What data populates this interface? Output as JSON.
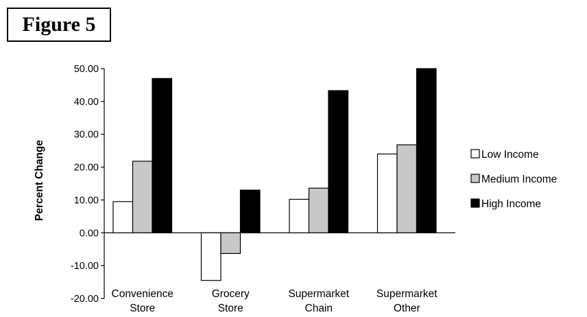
{
  "figure_label": "Figure 5",
  "chart_data": {
    "type": "bar",
    "title": "",
    "xlabel": "",
    "ylabel": "Percent Change",
    "ylim": [
      -20,
      50
    ],
    "yticks": [
      "50.00",
      "40.00",
      "30.00",
      "20.00",
      "10.00",
      "0.00",
      "-10.00",
      "-20.00"
    ],
    "ytick_values": [
      50,
      40,
      30,
      20,
      10,
      0,
      -10,
      -20
    ],
    "categories": [
      [
        "Convenience",
        "Store"
      ],
      [
        "Grocery",
        "Store"
      ],
      [
        "Supermarket",
        "Chain"
      ],
      [
        "Supermarket",
        "Other"
      ]
    ],
    "series": [
      {
        "name": "Low Income",
        "values": [
          9.5,
          -14.5,
          10.2,
          24.0
        ],
        "color": "#ffffff"
      },
      {
        "name": "Medium Income",
        "values": [
          21.8,
          -6.3,
          13.6,
          26.8
        ],
        "color": "#c8c8c8"
      },
      {
        "name": "High Income",
        "values": [
          47.0,
          13.0,
          43.3,
          50.0
        ],
        "color": "#000000"
      }
    ],
    "grid": false,
    "legend_position": "right"
  }
}
